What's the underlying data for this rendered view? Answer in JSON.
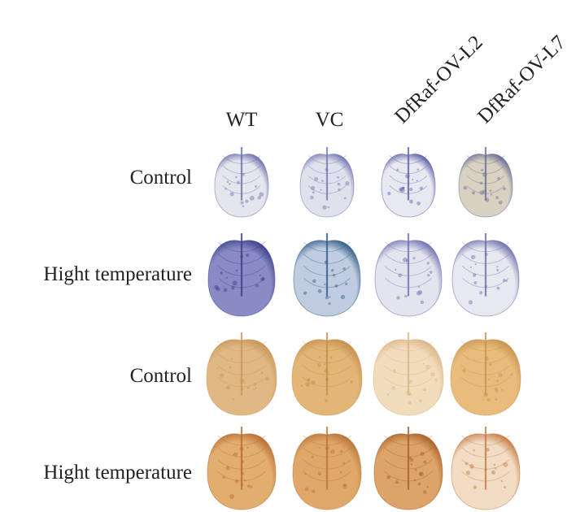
{
  "columns": [
    "WT",
    "VC",
    "DfRaf-OV-L2",
    "DfRaf-OV-L7"
  ],
  "rows": [
    "Control",
    "Hight temperature",
    "Control",
    "Hight temperature"
  ]
}
